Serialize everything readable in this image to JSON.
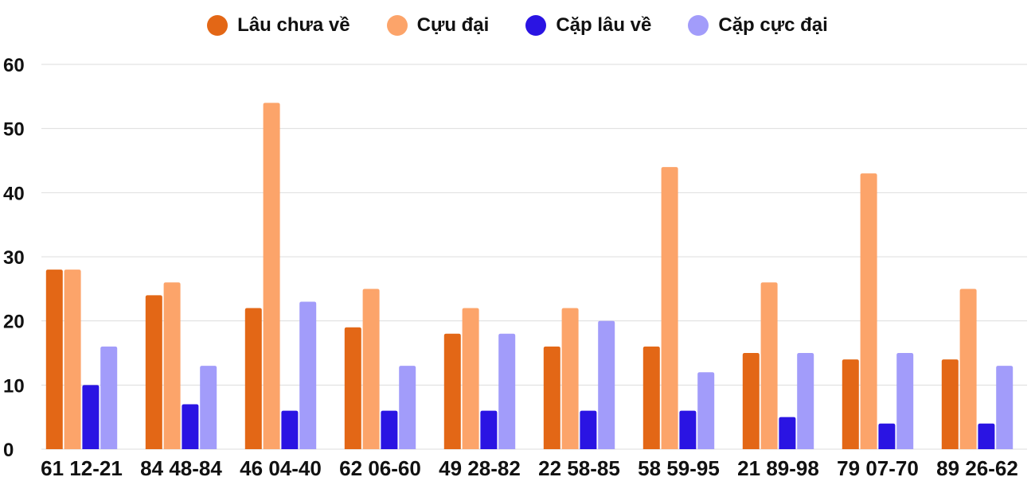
{
  "chart_data": {
    "type": "bar",
    "title": "",
    "xlabel": "",
    "ylabel": "",
    "ylim": [
      0,
      60
    ],
    "yticks": [
      0,
      10,
      20,
      30,
      40,
      50,
      60
    ],
    "grid": true,
    "legend_position": "top-center",
    "categories": [
      "61 12-21",
      "84 48-84",
      "46 04-40",
      "62 06-60",
      "49 28-82",
      "22 58-85",
      "58 59-95",
      "21 89-98",
      "79 07-70",
      "89 26-62"
    ],
    "series": [
      {
        "name": "Lâu chưa về",
        "color": "#e36716",
        "values": [
          28,
          24,
          22,
          19,
          18,
          16,
          16,
          15,
          14,
          14
        ]
      },
      {
        "name": "Cựu đại",
        "color": "#fca46a",
        "values": [
          28,
          26,
          54,
          25,
          22,
          22,
          44,
          26,
          43,
          25
        ]
      },
      {
        "name": "Cặp lâu về",
        "color": "#2a14e3",
        "values": [
          10,
          7,
          6,
          6,
          6,
          6,
          6,
          5,
          4,
          4
        ]
      },
      {
        "name": "Cặp cực đại",
        "color": "#a29cfa",
        "values": [
          16,
          13,
          23,
          13,
          18,
          20,
          12,
          15,
          15,
          13
        ]
      }
    ]
  }
}
